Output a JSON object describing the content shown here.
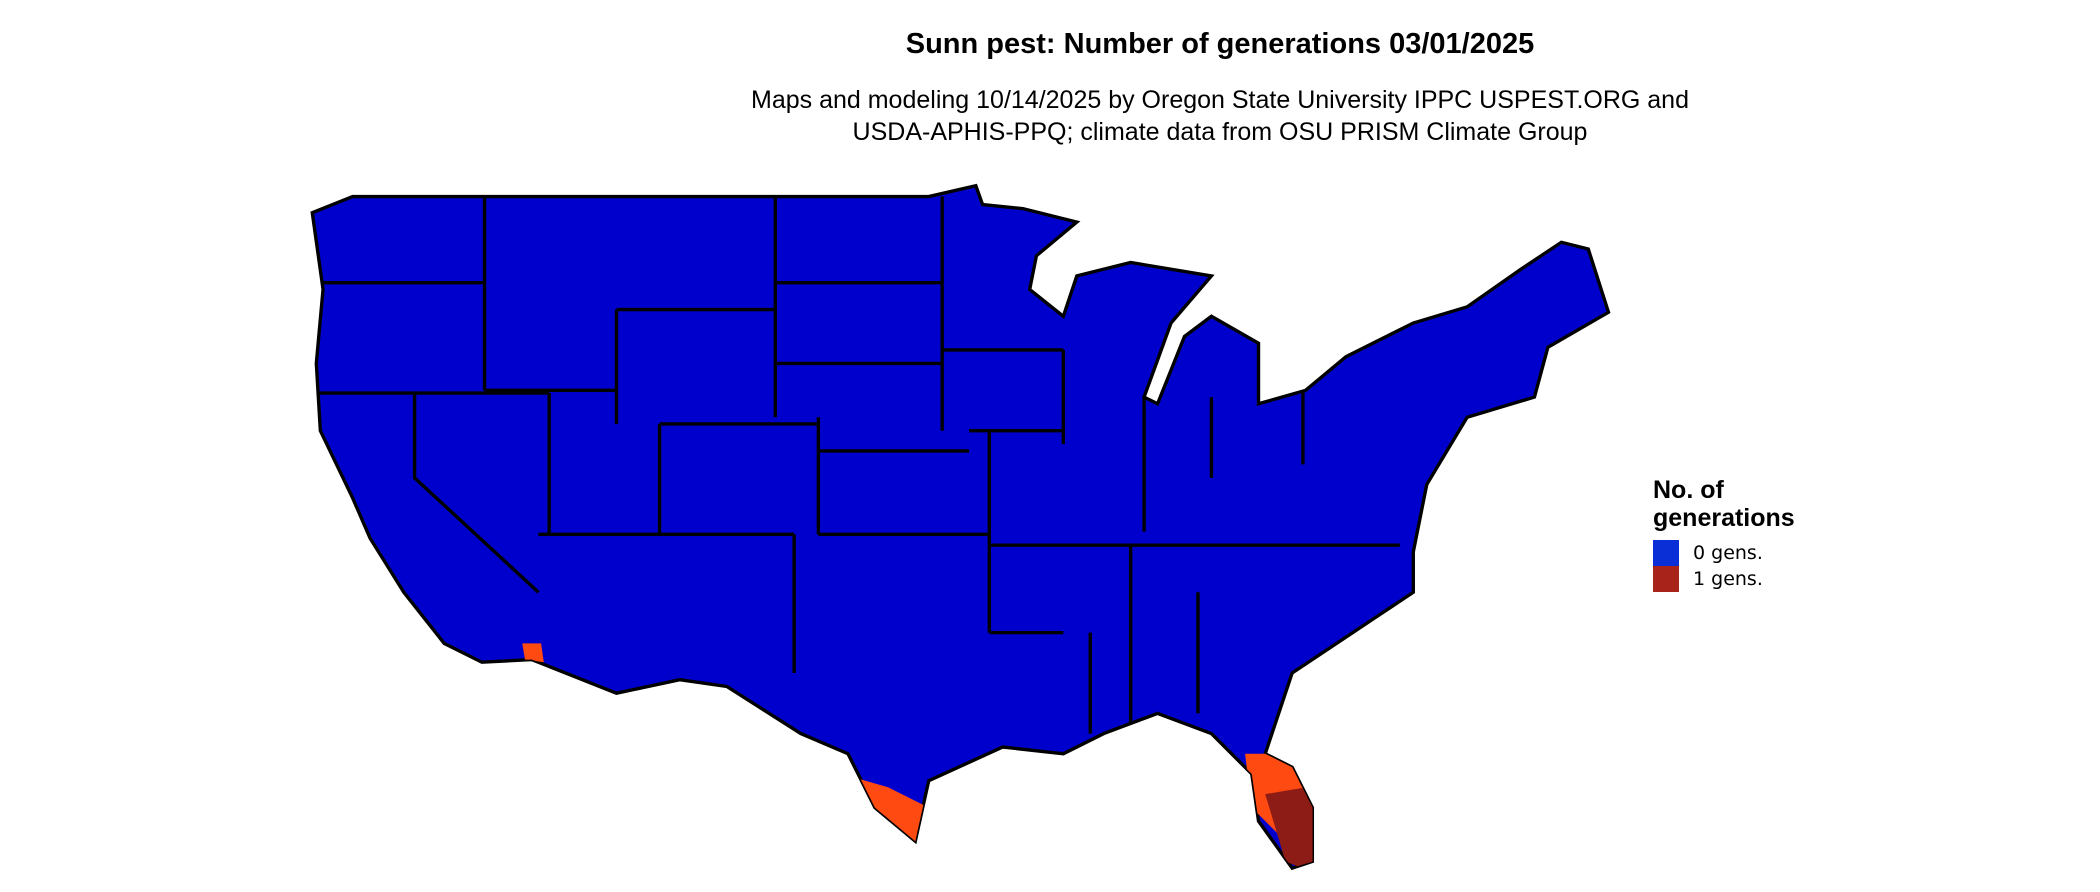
{
  "chart_data": {
    "type": "map",
    "title": "Sunn pest: Number of generations 03/01/2025",
    "subtitle": "Maps and modeling 10/14/2025 by Oregon State University IPPC USPEST.ORG and USDA-APHIS-PPQ; climate data from OSU PRISM Climate Group",
    "region": "Contiguous United States",
    "legend": {
      "title": "No. of generations",
      "placement": "right",
      "entries": [
        {
          "label": "0 gens.",
          "color": "#0a2fd6"
        },
        {
          "label": "1 gens.",
          "color": "#a8231a"
        }
      ]
    },
    "colors": {
      "map_fill": "#0000cc",
      "one_gen_light": "#ff4a12",
      "one_gen_dark": "#8e1c16",
      "borders": "#000000"
    }
  },
  "header": {
    "title": "Sunn pest: Number of generations 03/01/2025",
    "subtitle_line1": "Maps and modeling 10/14/2025 by Oregon State University IPPC USPEST.ORG and",
    "subtitle_line2": "USDA-APHIS-PPQ; climate data from OSU PRISM Climate Group"
  },
  "legend": {
    "title_line1": "No. of",
    "title_line2": "generations",
    "items": [
      {
        "label": "0 gens.",
        "color": "#0a2fd6"
      },
      {
        "label": "1 gens.",
        "color": "#a8231a"
      }
    ]
  }
}
